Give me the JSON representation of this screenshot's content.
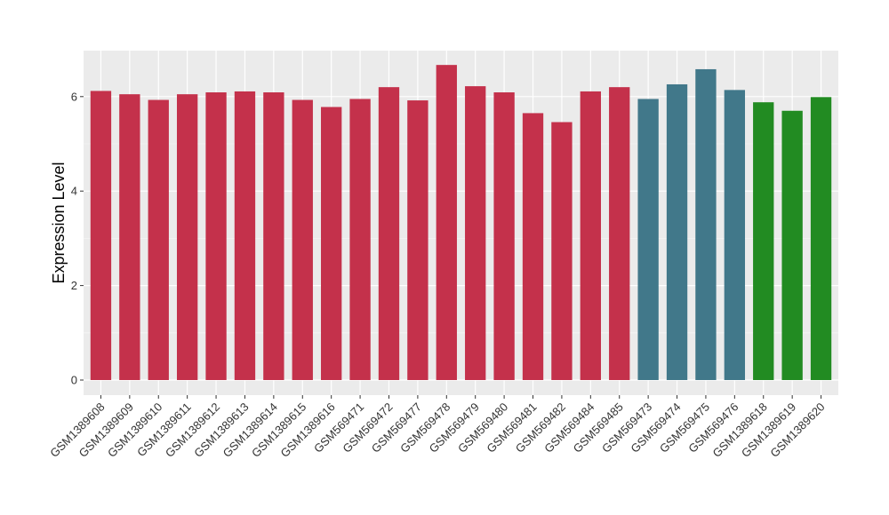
{
  "chart_data": {
    "type": "bar",
    "title": "",
    "xlabel": "",
    "ylabel": "Expression Level",
    "ylim": [
      0,
      7
    ],
    "yticks": [
      0,
      2,
      4,
      6
    ],
    "grid": true,
    "panel_color": "#EBEBEB",
    "categories": [
      "GSM1389608",
      "GSM1389609",
      "GSM1389610",
      "GSM1389611",
      "GSM1389612",
      "GSM1389613",
      "GSM1389614",
      "GSM1389615",
      "GSM1389616",
      "GSM569471",
      "GSM569472",
      "GSM569477",
      "GSM569478",
      "GSM569479",
      "GSM569480",
      "GSM569481",
      "GSM569482",
      "GSM569484",
      "GSM569485",
      "GSM569473",
      "GSM569474",
      "GSM569475",
      "GSM569476",
      "GSM1389618",
      "GSM1389619",
      "GSM1389620"
    ],
    "values": [
      6.12,
      6.05,
      5.93,
      6.05,
      6.09,
      6.11,
      6.09,
      5.93,
      5.78,
      5.95,
      6.2,
      5.92,
      6.67,
      6.22,
      6.09,
      5.65,
      5.46,
      6.11,
      6.2,
      5.95,
      6.26,
      6.58,
      6.14,
      5.88,
      5.7,
      5.99
    ],
    "bar_colors": [
      "#C4314B",
      "#C4314B",
      "#C4314B",
      "#C4314B",
      "#C4314B",
      "#C4314B",
      "#C4314B",
      "#C4314B",
      "#C4314B",
      "#C4314B",
      "#C4314B",
      "#C4314B",
      "#C4314B",
      "#C4314B",
      "#C4314B",
      "#C4314B",
      "#C4314B",
      "#C4314B",
      "#C4314B",
      "#41788A",
      "#41788A",
      "#41788A",
      "#41788A",
      "#228B22",
      "#228B22",
      "#228B22"
    ]
  }
}
